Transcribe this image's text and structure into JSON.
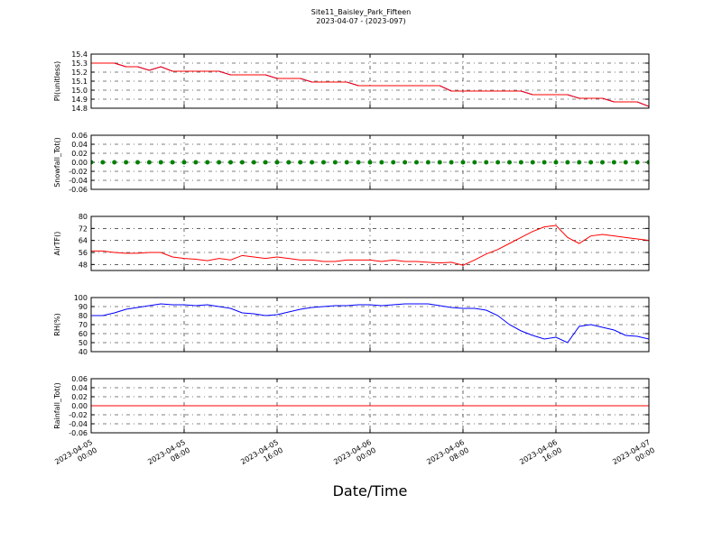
{
  "chart_data": {
    "type": "line",
    "title": "Site11_Baisley_Park_Fifteen",
    "subtitle": "2023-04-07 - (2023-097)",
    "xlabel": "Date/Time",
    "grid": true,
    "xlim": [
      "2023-04-05 00:00",
      "2023-04-07 00:00"
    ],
    "xticks": [
      "2023-04-05 00:00",
      "2023-04-05 08:00",
      "2023-04-05 16:00",
      "2023-04-06 00:00",
      "2023-04-06 08:00",
      "2023-04-06 16:00",
      "2023-04-07 00:00"
    ],
    "x": [
      "2023-04-05 00:00",
      "2023-04-05 01:00",
      "2023-04-05 02:00",
      "2023-04-05 03:00",
      "2023-04-05 04:00",
      "2023-04-05 05:00",
      "2023-04-05 06:00",
      "2023-04-05 07:00",
      "2023-04-05 08:00",
      "2023-04-05 09:00",
      "2023-04-05 10:00",
      "2023-04-05 11:00",
      "2023-04-05 12:00",
      "2023-04-05 13:00",
      "2023-04-05 14:00",
      "2023-04-05 15:00",
      "2023-04-05 16:00",
      "2023-04-05 17:00",
      "2023-04-05 18:00",
      "2023-04-05 19:00",
      "2023-04-05 20:00",
      "2023-04-05 21:00",
      "2023-04-05 22:00",
      "2023-04-05 23:00",
      "2023-04-06 00:00",
      "2023-04-06 01:00",
      "2023-04-06 02:00",
      "2023-04-06 03:00",
      "2023-04-06 04:00",
      "2023-04-06 05:00",
      "2023-04-06 06:00",
      "2023-04-06 07:00",
      "2023-04-06 08:00",
      "2023-04-06 09:00",
      "2023-04-06 10:00",
      "2023-04-06 11:00",
      "2023-04-06 12:00",
      "2023-04-06 13:00",
      "2023-04-06 14:00",
      "2023-04-06 15:00",
      "2023-04-06 16:00",
      "2023-04-06 17:00",
      "2023-04-06 18:00",
      "2023-04-06 19:00",
      "2023-04-06 20:00",
      "2023-04-06 21:00",
      "2023-04-06 22:00",
      "2023-04-06 23:00",
      "2023-04-07 00:00"
    ],
    "panels": [
      {
        "ylabel": "PI(unitless)",
        "ylim": [
          14.8,
          15.4
        ],
        "yticks": [
          14.8,
          14.9,
          {
            "value": 15,
            "label": "15.0"
          },
          15.1,
          15.2,
          15.3,
          15.4
        ],
        "series": [
          {
            "color": "#0000ff",
            "values": [
              15.3,
              15.3,
              15.3,
              15.26,
              15.26,
              15.22,
              15.26,
              15.21,
              15.21,
              15.21,
              15.21,
              15.21,
              15.17,
              15.17,
              15.17,
              15.17,
              15.13,
              15.13,
              15.13,
              15.09,
              15.09,
              15.09,
              15.09,
              15.05,
              15.05,
              15.05,
              15.05,
              15.05,
              15.05,
              15.05,
              15.05,
              14.99,
              14.99,
              14.99,
              14.99,
              14.99,
              14.99,
              14.99,
              14.95,
              14.95,
              14.95,
              14.95,
              14.91,
              14.91,
              14.91,
              14.87,
              14.87,
              14.87,
              14.82
            ]
          },
          {
            "color": "#ff0000",
            "values": [
              15.3,
              15.3,
              15.3,
              15.26,
              15.26,
              15.22,
              15.26,
              15.21,
              15.21,
              15.21,
              15.21,
              15.21,
              15.17,
              15.17,
              15.17,
              15.17,
              15.13,
              15.13,
              15.13,
              15.09,
              15.09,
              15.09,
              15.09,
              15.05,
              15.05,
              15.05,
              15.05,
              15.05,
              15.05,
              15.05,
              15.05,
              14.99,
              14.99,
              14.99,
              14.99,
              14.99,
              14.99,
              14.99,
              14.95,
              14.95,
              14.95,
              14.95,
              14.91,
              14.91,
              14.91,
              14.87,
              14.87,
              14.87,
              14.82
            ]
          }
        ]
      },
      {
        "ylabel": "Snowfall_Tot()",
        "ylim": [
          -0.06,
          0.06
        ],
        "yticks": [
          -0.06,
          -0.04,
          -0.02,
          {
            "value": 0,
            "label": "0.00"
          },
          0.02,
          0.04,
          0.06
        ],
        "series": [
          {
            "color": "#008000",
            "marker": "o",
            "values": [
              0,
              0,
              0,
              0,
              0,
              0,
              0,
              0,
              0,
              0,
              0,
              0,
              0,
              0,
              0,
              0,
              0,
              0,
              0,
              0,
              0,
              0,
              0,
              0,
              0,
              0,
              0,
              0,
              0,
              0,
              0,
              0,
              0,
              0,
              0,
              0,
              0,
              0,
              0,
              0,
              0,
              0,
              0,
              0,
              0,
              0,
              0,
              0,
              0
            ]
          }
        ]
      },
      {
        "ylabel": "AirTF()",
        "ylim": [
          44,
          80
        ],
        "yticks": [
          48,
          56,
          64,
          72,
          80
        ],
        "series": [
          {
            "color": "#ff0000",
            "values": [
              57,
              57,
              56,
              55.5,
              55.5,
              56,
              56,
              53,
              52,
              51.5,
              50.5,
              52,
              51,
              54,
              53,
              52,
              53,
              52,
              51,
              51,
              50,
              50,
              51,
              51,
              51,
              50,
              51,
              50,
              50,
              49.5,
              49,
              49.5,
              47.5,
              51,
              55,
              58,
              62,
              66,
              70,
              73,
              74,
              66,
              62,
              67,
              68,
              67,
              66,
              65,
              64
            ]
          }
        ]
      },
      {
        "ylabel": "RH(%)",
        "ylim": [
          40,
          100
        ],
        "yticks": [
          40,
          50,
          60,
          70,
          80,
          90,
          100
        ],
        "series": [
          {
            "color": "#0000ff",
            "values": [
              80,
              80,
              83,
              87,
              89,
              91,
              93,
              92,
              92,
              91,
              92,
              90,
              88,
              83,
              82,
              80,
              81,
              84,
              87,
              89,
              90,
              91,
              91,
              92,
              92,
              91,
              92,
              93,
              93,
              93,
              91,
              89,
              88,
              88,
              86,
              80,
              70,
              63,
              58,
              54,
              56,
              50,
              68,
              70,
              67,
              64,
              58,
              57,
              54
            ]
          }
        ]
      },
      {
        "ylabel": "Rainfall_Tot()",
        "ylim": [
          -0.06,
          0.06
        ],
        "yticks": [
          -0.06,
          -0.04,
          -0.02,
          {
            "value": 0,
            "label": "0.00"
          },
          0.02,
          0.04,
          0.06
        ],
        "series": [
          {
            "color": "#ff0000",
            "values": [
              0,
              0,
              0,
              0,
              0,
              0,
              0,
              0,
              0,
              0,
              0,
              0,
              0,
              0,
              0,
              0,
              0,
              0,
              0,
              0,
              0,
              0,
              0,
              0,
              0,
              0,
              0,
              0,
              0,
              0,
              0,
              0,
              0,
              0,
              0,
              0,
              0,
              0,
              0,
              0,
              0,
              0,
              0,
              0,
              0,
              0,
              0,
              0,
              0
            ]
          }
        ]
      }
    ]
  }
}
